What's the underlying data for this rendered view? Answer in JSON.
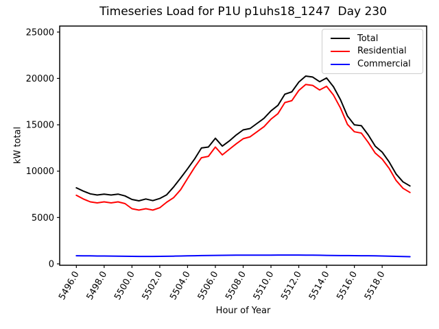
{
  "title": "Timeseries Load for P1U p1uhs18_1247  Day 230",
  "chart_data": {
    "type": "line",
    "title": "Timeseries Load for P1U p1uhs18_1247  Day 230",
    "xlabel": "Hour of Year",
    "ylabel": "kW total",
    "grid": false,
    "legend_position": "upper right",
    "xlim": [
      5494.8,
      5521.2
    ],
    "ylim": [
      -150,
      25650
    ],
    "xticks": [
      5496,
      5498,
      5500,
      5502,
      5504,
      5506,
      5508,
      5510,
      5512,
      5514,
      5516,
      5518
    ],
    "xtick_labels": [
      "5496.0",
      "5498.0",
      "5500.0",
      "5502.0",
      "5504.0",
      "5506.0",
      "5508.0",
      "5510.0",
      "5512.0",
      "5514.0",
      "5516.0",
      "5518.0"
    ],
    "yticks": [
      0,
      5000,
      10000,
      15000,
      20000,
      25000
    ],
    "ytick_labels": [
      "0",
      "5000",
      "10000",
      "15000",
      "20000",
      "25000"
    ],
    "x_start": 5496,
    "x_step": 0.5,
    "series": [
      {
        "name": "Total",
        "color": "#000000",
        "values": [
          8200,
          7850,
          7550,
          7430,
          7520,
          7430,
          7520,
          7330,
          6950,
          6800,
          7000,
          6820,
          7050,
          7450,
          8300,
          9250,
          10250,
          11300,
          12500,
          12600,
          13550,
          12700,
          13250,
          13900,
          14450,
          14600,
          15150,
          15700,
          16500,
          17100,
          18300,
          18550,
          19600,
          20250,
          20150,
          19650,
          20050,
          19100,
          17700,
          15950,
          15000,
          14900,
          13900,
          12700,
          12050,
          11000,
          9700,
          8850,
          8400
        ]
      },
      {
        "name": "Residential",
        "color": "#ff0000",
        "values": [
          7400,
          7000,
          6690,
          6580,
          6690,
          6580,
          6690,
          6500,
          5950,
          5800,
          5950,
          5800,
          6050,
          6650,
          7150,
          8000,
          9200,
          10400,
          11450,
          11600,
          12600,
          11750,
          12350,
          12950,
          13500,
          13700,
          14250,
          14800,
          15600,
          16200,
          17400,
          17600,
          18700,
          19350,
          19250,
          18750,
          19150,
          18200,
          16800,
          15050,
          14250,
          14100,
          13100,
          11950,
          11300,
          10300,
          9000,
          8150,
          7700
        ]
      },
      {
        "name": "Commercial",
        "color": "#0000ff",
        "values": [
          880,
          870,
          860,
          850,
          845,
          840,
          830,
          820,
          810,
          805,
          800,
          805,
          810,
          820,
          835,
          850,
          865,
          880,
          895,
          905,
          915,
          925,
          930,
          935,
          940,
          940,
          945,
          945,
          945,
          950,
          950,
          950,
          950,
          945,
          940,
          930,
          915,
          905,
          895,
          890,
          885,
          880,
          875,
          865,
          850,
          830,
          810,
          790,
          775
        ]
      }
    ]
  },
  "legend": {
    "entries": [
      {
        "label": "Total",
        "color": "#000000"
      },
      {
        "label": "Residential",
        "color": "#ff0000"
      },
      {
        "label": "Commercial",
        "color": "#0000ff"
      }
    ]
  }
}
